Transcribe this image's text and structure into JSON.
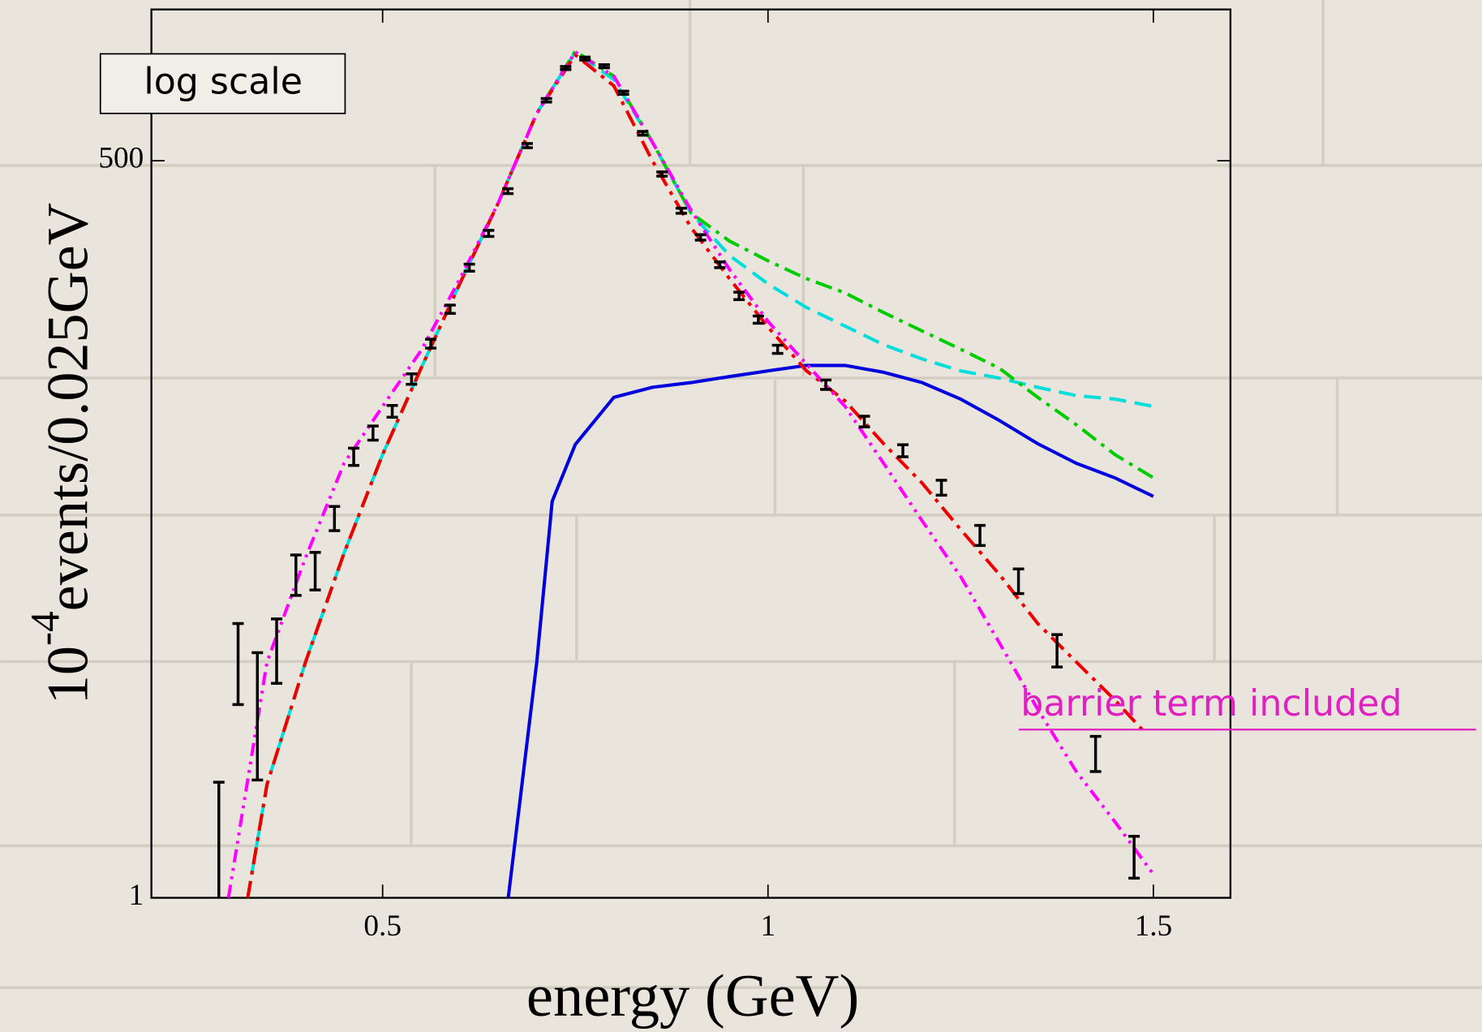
{
  "chart_data": {
    "type": "line",
    "xlabel": "energy (GeV)",
    "ylabel": {
      "base": "10",
      "exponent": "-4",
      "text": "events/0.025GeV"
    },
    "annotations": [
      "log scale",
      "barrier term included"
    ],
    "log_y": true,
    "xlim": [
      0.2,
      1.6
    ],
    "ylim": [
      1,
      1790
    ],
    "xticks": [
      0.5,
      1,
      1.5
    ],
    "yticks": [
      1,
      500
    ],
    "data_points": {
      "color": "#000000",
      "x": [
        0.2875,
        0.3125,
        0.3375,
        0.3625,
        0.3875,
        0.4125,
        0.4375,
        0.4625,
        0.4875,
        0.5125,
        0.5375,
        0.5625,
        0.5875,
        0.6125,
        0.6375,
        0.6625,
        0.6875,
        0.7125,
        0.7375,
        0.7625,
        0.7875,
        0.8125,
        0.8375,
        0.8625,
        0.8875,
        0.9125,
        0.9375,
        0.9625,
        0.9875,
        1.0125,
        1.075,
        1.125,
        1.175,
        1.225,
        1.275,
        1.325,
        1.375,
        1.425,
        1.475
      ],
      "values": [
        1.75,
        7.6,
        5.3,
        8.3,
        15.4,
        15.9,
        24.6,
        41.3,
        50.4,
        60.5,
        79.4,
        107,
        143,
        203,
        271,
        387,
        568,
        832,
        1092,
        1183,
        1109,
        887,
        630,
        447,
        328,
        262,
        208,
        160,
        131,
        102,
        75.7,
        55.5,
        43.4,
        31.8,
        21.3,
        14.5,
        8.1,
        3.4,
        1.43
      ],
      "errors": [
        0.9,
        2.5,
        2.6,
        2.2,
        2.6,
        2.5,
        2.5,
        3,
        3,
        3,
        3.5,
        4,
        5,
        6,
        7,
        8,
        10,
        12,
        14,
        15,
        14,
        12,
        10,
        8,
        7,
        6,
        5,
        5,
        4,
        3.5,
        3,
        2.5,
        2.2,
        2,
        1.8,
        1.5,
        1.1,
        0.5,
        0.25
      ]
    },
    "series": [
      {
        "color": "#0000dd",
        "style": "solid",
        "x": [
          0.663,
          0.7,
          0.72,
          0.75,
          0.8,
          0.85,
          0.9,
          0.95,
          1.0,
          1.05,
          1.1,
          1.15,
          1.2,
          1.25,
          1.3,
          1.35,
          1.4,
          1.45,
          1.5
        ],
        "values": [
          1,
          7.3,
          28.3,
          45.7,
          68,
          74,
          77,
          81,
          85,
          89,
          89,
          84,
          77,
          67,
          56,
          46,
          39,
          34.5,
          29.5
        ]
      },
      {
        "color": "#00dddd",
        "style": "dashed",
        "x": [
          0.325,
          0.35,
          0.4,
          0.45,
          0.5,
          0.55,
          0.6,
          0.65,
          0.7,
          0.75,
          0.8,
          0.85,
          0.9,
          0.95,
          1.0,
          1.05,
          1.1,
          1.15,
          1.2,
          1.25,
          1.3,
          1.35,
          1.4,
          1.45,
          1.5
        ],
        "values": [
          1,
          2.6,
          7.3,
          18.3,
          42,
          87,
          177,
          350,
          745,
          1250,
          990,
          585,
          322,
          225,
          177,
          145,
          124,
          106,
          94,
          85,
          80,
          74,
          69,
          67,
          63
        ]
      },
      {
        "color": "#00cc00",
        "style": "dash-dot",
        "x": [
          0.325,
          0.35,
          0.4,
          0.45,
          0.5,
          0.55,
          0.6,
          0.65,
          0.7,
          0.75,
          0.8,
          0.85,
          0.9,
          0.95,
          1.0,
          1.05,
          1.1,
          1.15,
          1.2,
          1.25,
          1.3,
          1.35,
          1.4,
          1.45,
          1.5
        ],
        "values": [
          1,
          2.6,
          7.3,
          18.3,
          42,
          87,
          177,
          350,
          745,
          1260,
          1020,
          585,
          322,
          254,
          215,
          185,
          164,
          139,
          119,
          102,
          87,
          68,
          54,
          42,
          34.5
        ]
      },
      {
        "color": "#ee0000",
        "style": "dash-dot",
        "x": [
          0.325,
          0.35,
          0.4,
          0.45,
          0.5,
          0.55,
          0.6,
          0.65,
          0.7,
          0.75,
          0.8,
          0.85,
          0.9,
          0.95,
          1.0,
          1.05,
          1.1,
          1.15,
          1.2,
          1.25,
          1.3,
          1.35,
          1.4,
          1.45,
          1.49
        ],
        "values": [
          1,
          2.6,
          7.3,
          18.3,
          42,
          87,
          177,
          350,
          745,
          1220,
          940,
          500,
          285,
          185,
          123,
          85,
          66,
          46,
          33,
          22.3,
          15.3,
          10.1,
          7.3,
          5.3,
          4.0
        ]
      },
      {
        "color": "#ff00ff",
        "style": "dash-dot-dot",
        "x": [
          0.3,
          0.35,
          0.4,
          0.45,
          0.5,
          0.55,
          0.6,
          0.65,
          0.7,
          0.75,
          0.8,
          0.85,
          0.9,
          0.95,
          1.0,
          1.05,
          1.1,
          1.15,
          1.2,
          1.25,
          1.3,
          1.35,
          1.4,
          1.45,
          1.5
        ],
        "values": [
          1,
          7.3,
          17.6,
          39,
          63,
          101,
          184,
          350,
          745,
          1250,
          1020,
          585,
          330,
          200,
          129,
          90,
          63,
          39,
          24,
          15,
          8.6,
          4.9,
          2.9,
          1.9,
          1.22
        ]
      }
    ]
  }
}
